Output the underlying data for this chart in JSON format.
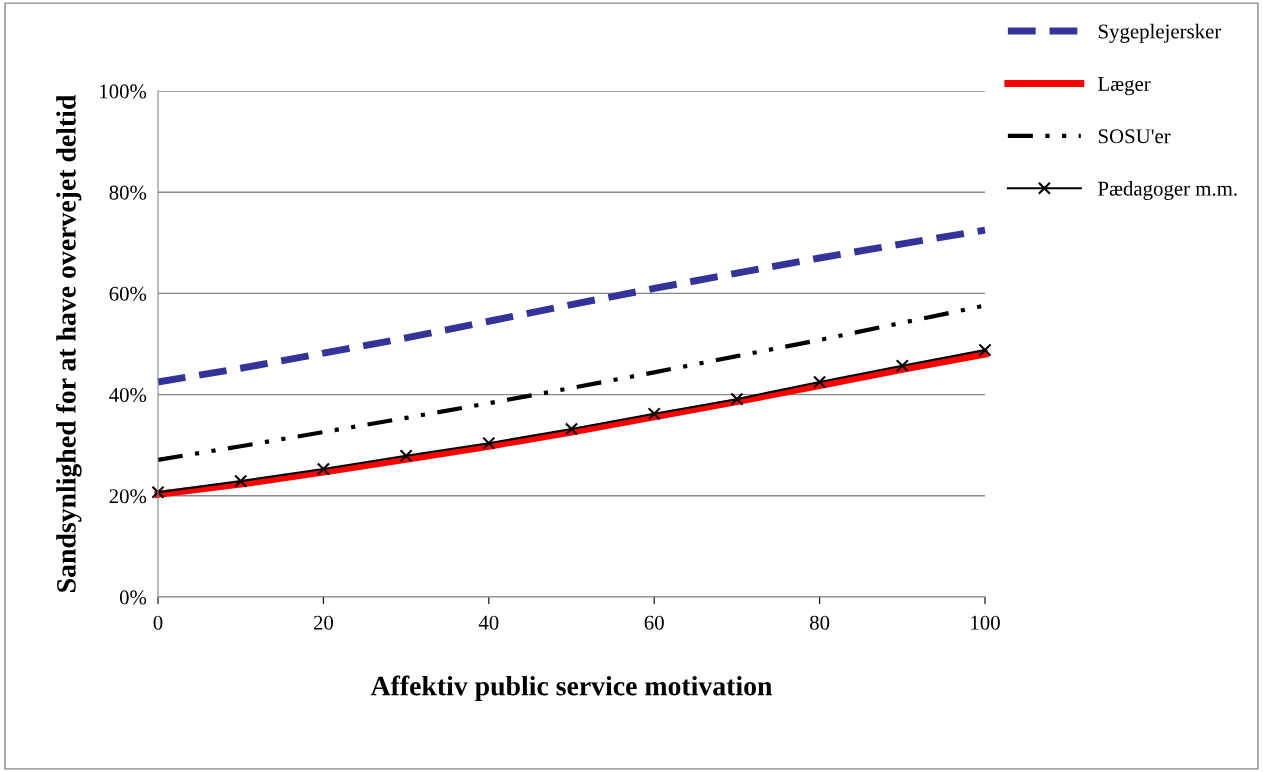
{
  "chart_data": {
    "type": "line",
    "xlabel": "Affektiv public service motivation",
    "ylabel": "Sandsynlighed for at have overvejet deltid",
    "x": [
      0,
      10,
      20,
      30,
      40,
      50,
      60,
      70,
      80,
      90,
      100
    ],
    "series": [
      {
        "name": "Sygeplejersker",
        "color": "#333399",
        "line_style": "dashed",
        "marker": "none",
        "values": [
          42.5,
          45.2,
          48.2,
          51.2,
          54.5,
          57.8,
          61.0,
          64.0,
          67.0,
          69.8,
          72.5
        ]
      },
      {
        "name": "Læger",
        "color": "#ff0000",
        "line_style": "solid",
        "marker": "none",
        "values": [
          20.3,
          22.3,
          24.7,
          27.2,
          29.8,
          32.6,
          35.6,
          38.6,
          41.8,
          45.0,
          48.0
        ]
      },
      {
        "name": "SOSU'er",
        "color": "#000000",
        "line_style": "dashdotdot",
        "marker": "none",
        "values": [
          27.1,
          29.8,
          32.6,
          35.4,
          38.3,
          41.3,
          44.4,
          47.6,
          50.8,
          54.2,
          57.6
        ]
      },
      {
        "name": "Pædagoger m.m.",
        "color": "#000000",
        "line_style": "solid",
        "marker": "cross",
        "values": [
          20.7,
          22.9,
          25.3,
          27.9,
          30.4,
          33.2,
          36.2,
          39.1,
          42.5,
          45.7,
          48.8
        ]
      }
    ],
    "xlim": [
      0,
      100
    ],
    "xticks": [
      0,
      20,
      40,
      60,
      80,
      100
    ],
    "ylim": [
      0,
      100
    ],
    "yticks": [
      {
        "value": 0,
        "label": "0%"
      },
      {
        "value": 20,
        "label": "20%"
      },
      {
        "value": 40,
        "label": "40%"
      },
      {
        "value": 60,
        "label": "60%"
      },
      {
        "value": 80,
        "label": "80%"
      },
      {
        "value": 100,
        "label": "100%"
      }
    ],
    "grid": "y",
    "legend": "top right"
  }
}
